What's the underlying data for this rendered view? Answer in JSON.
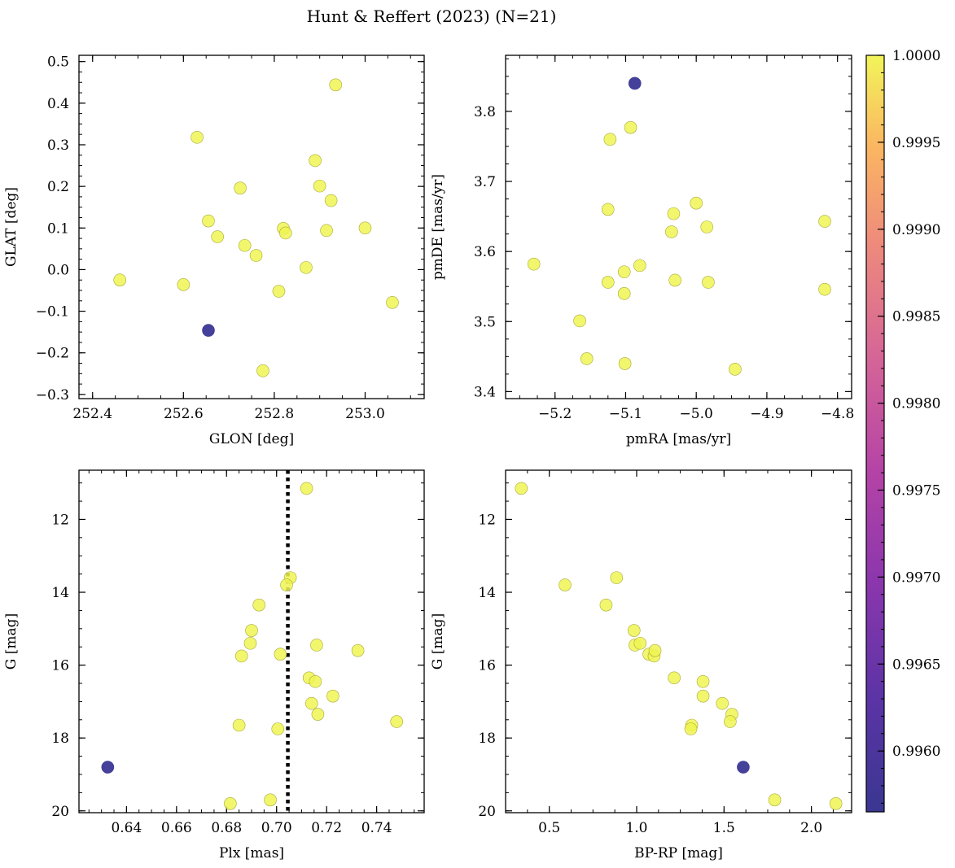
{
  "figure": {
    "title": "Hunt & Reffert (2023) (N=21)"
  },
  "colorbar": {
    "colormap": "plasma",
    "range": [
      0.99565,
      1.0
    ],
    "tick_labels": [
      "1.0000",
      "0.9995",
      "0.9990",
      "0.9985",
      "0.9980",
      "0.9975",
      "0.9970",
      "0.9965",
      "0.9960"
    ],
    "tick_values": [
      1.0,
      0.9995,
      0.999,
      0.9985,
      0.998,
      0.9975,
      0.997,
      0.9965,
      0.996
    ]
  },
  "chart_data": [
    {
      "type": "scatter",
      "panel": "top-left",
      "xlabel": "GLON [deg]",
      "ylabel": "GLAT [deg]",
      "xlim": [
        252.37,
        253.13
      ],
      "ylim": [
        -0.31,
        0.515
      ],
      "xticks": [
        252.4,
        252.6,
        252.8,
        253.0
      ],
      "xtick_labels": [
        "252.4",
        "252.6",
        "252.8",
        "253.0"
      ],
      "yticks": [
        -0.3,
        -0.2,
        -0.1,
        0.0,
        0.1,
        0.2,
        0.3,
        0.4,
        0.5
      ],
      "ytick_labels": [
        "−0.3",
        "−0.2",
        "−0.1",
        "0.0",
        "0.1",
        "0.2",
        "0.3",
        "0.4",
        "0.5"
      ],
      "invert_y": false,
      "points": [
        {
          "x": 252.46,
          "y": -0.025,
          "p": 1.0
        },
        {
          "x": 252.6,
          "y": -0.036,
          "p": 1.0
        },
        {
          "x": 252.63,
          "y": 0.318,
          "p": 1.0
        },
        {
          "x": 252.655,
          "y": 0.117,
          "p": 1.0
        },
        {
          "x": 252.675,
          "y": 0.079,
          "p": 1.0
        },
        {
          "x": 252.725,
          "y": 0.196,
          "p": 1.0
        },
        {
          "x": 252.735,
          "y": 0.058,
          "p": 1.0
        },
        {
          "x": 252.76,
          "y": 0.034,
          "p": 1.0
        },
        {
          "x": 252.775,
          "y": -0.243,
          "p": 1.0
        },
        {
          "x": 252.81,
          "y": -0.052,
          "p": 1.0
        },
        {
          "x": 252.82,
          "y": 0.099,
          "p": 1.0
        },
        {
          "x": 252.825,
          "y": 0.088,
          "p": 1.0
        },
        {
          "x": 252.87,
          "y": 0.005,
          "p": 1.0
        },
        {
          "x": 252.89,
          "y": 0.262,
          "p": 1.0
        },
        {
          "x": 252.9,
          "y": 0.201,
          "p": 1.0
        },
        {
          "x": 252.915,
          "y": 0.094,
          "p": 1.0
        },
        {
          "x": 252.925,
          "y": 0.166,
          "p": 1.0
        },
        {
          "x": 252.935,
          "y": 0.444,
          "p": 1.0
        },
        {
          "x": 253.0,
          "y": 0.1,
          "p": 1.0
        },
        {
          "x": 253.06,
          "y": -0.079,
          "p": 1.0
        },
        {
          "x": 252.655,
          "y": -0.146,
          "p": 0.99565
        }
      ]
    },
    {
      "type": "scatter",
      "panel": "top-right",
      "xlabel": "pmRA [mas/yr]",
      "ylabel": "pmDE [mas/yr]",
      "xlim": [
        -5.27,
        -4.78
      ],
      "ylim": [
        3.39,
        3.88
      ],
      "xticks": [
        -5.2,
        -5.1,
        -5.0,
        -4.9,
        -4.8
      ],
      "xtick_labels": [
        "−5.2",
        "−5.1",
        "−5.0",
        "−4.9",
        "−4.8"
      ],
      "yticks": [
        3.4,
        3.5,
        3.6,
        3.7,
        3.8
      ],
      "ytick_labels": [
        "3.4",
        "3.5",
        "3.6",
        "3.7",
        "3.8"
      ],
      "invert_y": false,
      "points": [
        {
          "x": -5.23,
          "y": 3.582,
          "p": 1.0
        },
        {
          "x": -5.165,
          "y": 3.501,
          "p": 1.0
        },
        {
          "x": -5.155,
          "y": 3.447,
          "p": 1.0
        },
        {
          "x": -5.125,
          "y": 3.66,
          "p": 1.0
        },
        {
          "x": -5.125,
          "y": 3.556,
          "p": 1.0
        },
        {
          "x": -5.122,
          "y": 3.76,
          "p": 1.0
        },
        {
          "x": -5.102,
          "y": 3.571,
          "p": 1.0
        },
        {
          "x": -5.102,
          "y": 3.54,
          "p": 1.0
        },
        {
          "x": -5.101,
          "y": 3.44,
          "p": 1.0
        },
        {
          "x": -5.093,
          "y": 3.777,
          "p": 1.0
        },
        {
          "x": -5.08,
          "y": 3.58,
          "p": 1.0
        },
        {
          "x": -5.035,
          "y": 3.628,
          "p": 1.0
        },
        {
          "x": -5.032,
          "y": 3.654,
          "p": 1.0
        },
        {
          "x": -5.03,
          "y": 3.559,
          "p": 1.0
        },
        {
          "x": -5.0,
          "y": 3.669,
          "p": 1.0
        },
        {
          "x": -4.985,
          "y": 3.635,
          "p": 1.0
        },
        {
          "x": -4.983,
          "y": 3.556,
          "p": 1.0
        },
        {
          "x": -4.945,
          "y": 3.432,
          "p": 1.0
        },
        {
          "x": -4.818,
          "y": 3.643,
          "p": 1.0
        },
        {
          "x": -4.818,
          "y": 3.546,
          "p": 1.0
        },
        {
          "x": -5.087,
          "y": 3.84,
          "p": 0.99565
        }
      ]
    },
    {
      "type": "scatter",
      "panel": "bottom-left",
      "xlabel": "Plx [mas]",
      "ylabel": "G [mag]",
      "xlim": [
        0.621,
        0.759
      ],
      "ylim": [
        20.05,
        10.65
      ],
      "xticks": [
        0.64,
        0.66,
        0.68,
        0.7,
        0.72,
        0.74
      ],
      "xtick_labels": [
        "0.64",
        "0.66",
        "0.68",
        "0.70",
        "0.72",
        "0.74"
      ],
      "yticks": [
        12,
        14,
        16,
        18,
        20
      ],
      "ytick_labels": [
        "12",
        "14",
        "16",
        "18",
        "20"
      ],
      "invert_y": true,
      "vline": {
        "x": 0.7045,
        "style": "dotted"
      },
      "points": [
        {
          "x": 0.712,
          "y": 11.15,
          "p": 1.0
        },
        {
          "x": 0.7055,
          "y": 13.6,
          "p": 1.0
        },
        {
          "x": 0.704,
          "y": 13.8,
          "p": 1.0
        },
        {
          "x": 0.693,
          "y": 14.35,
          "p": 1.0
        },
        {
          "x": 0.69,
          "y": 15.05,
          "p": 1.0
        },
        {
          "x": 0.6895,
          "y": 15.4,
          "p": 1.0
        },
        {
          "x": 0.686,
          "y": 15.75,
          "p": 1.0
        },
        {
          "x": 0.7015,
          "y": 15.7,
          "p": 1.0
        },
        {
          "x": 0.716,
          "y": 15.45,
          "p": 1.0
        },
        {
          "x": 0.7325,
          "y": 15.6,
          "p": 1.0
        },
        {
          "x": 0.713,
          "y": 16.35,
          "p": 1.0
        },
        {
          "x": 0.7155,
          "y": 16.45,
          "p": 1.0
        },
        {
          "x": 0.7225,
          "y": 16.85,
          "p": 1.0
        },
        {
          "x": 0.714,
          "y": 17.05,
          "p": 1.0
        },
        {
          "x": 0.7165,
          "y": 17.35,
          "p": 1.0
        },
        {
          "x": 0.685,
          "y": 17.65,
          "p": 1.0
        },
        {
          "x": 0.7005,
          "y": 17.75,
          "p": 1.0
        },
        {
          "x": 0.748,
          "y": 17.55,
          "p": 1.0
        },
        {
          "x": 0.6975,
          "y": 19.7,
          "p": 1.0
        },
        {
          "x": 0.6815,
          "y": 19.8,
          "p": 1.0
        },
        {
          "x": 0.6325,
          "y": 18.8,
          "p": 0.99565
        }
      ]
    },
    {
      "type": "scatter",
      "panel": "bottom-right",
      "xlabel": "BP-RP [mag]",
      "ylabel": "G [mag]",
      "xlim": [
        0.25,
        2.23
      ],
      "ylim": [
        20.05,
        10.65
      ],
      "xticks": [
        0.5,
        1.0,
        1.5,
        2.0
      ],
      "xtick_labels": [
        "0.5",
        "1.0",
        "1.5",
        "2.0"
      ],
      "yticks": [
        12,
        14,
        16,
        18,
        20
      ],
      "ytick_labels": [
        "12",
        "14",
        "16",
        "18",
        "20"
      ],
      "invert_y": true,
      "points": [
        {
          "x": 0.34,
          "y": 11.15,
          "p": 1.0
        },
        {
          "x": 0.59,
          "y": 13.8,
          "p": 1.0
        },
        {
          "x": 0.885,
          "y": 13.6,
          "p": 1.0
        },
        {
          "x": 0.825,
          "y": 14.35,
          "p": 1.0
        },
        {
          "x": 0.985,
          "y": 15.05,
          "p": 1.0
        },
        {
          "x": 0.99,
          "y": 15.45,
          "p": 1.0
        },
        {
          "x": 1.02,
          "y": 15.4,
          "p": 1.0
        },
        {
          "x": 1.07,
          "y": 15.7,
          "p": 1.0
        },
        {
          "x": 1.1,
          "y": 15.75,
          "p": 1.0
        },
        {
          "x": 1.105,
          "y": 15.6,
          "p": 1.0
        },
        {
          "x": 1.215,
          "y": 16.35,
          "p": 1.0
        },
        {
          "x": 1.38,
          "y": 16.45,
          "p": 1.0
        },
        {
          "x": 1.38,
          "y": 16.85,
          "p": 1.0
        },
        {
          "x": 1.49,
          "y": 17.05,
          "p": 1.0
        },
        {
          "x": 1.545,
          "y": 17.35,
          "p": 1.0
        },
        {
          "x": 1.535,
          "y": 17.55,
          "p": 1.0
        },
        {
          "x": 1.315,
          "y": 17.65,
          "p": 1.0
        },
        {
          "x": 1.31,
          "y": 17.75,
          "p": 1.0
        },
        {
          "x": 1.79,
          "y": 19.7,
          "p": 1.0
        },
        {
          "x": 2.14,
          "y": 19.8,
          "p": 1.0
        },
        {
          "x": 1.61,
          "y": 18.8,
          "p": 0.99565
        }
      ]
    }
  ]
}
